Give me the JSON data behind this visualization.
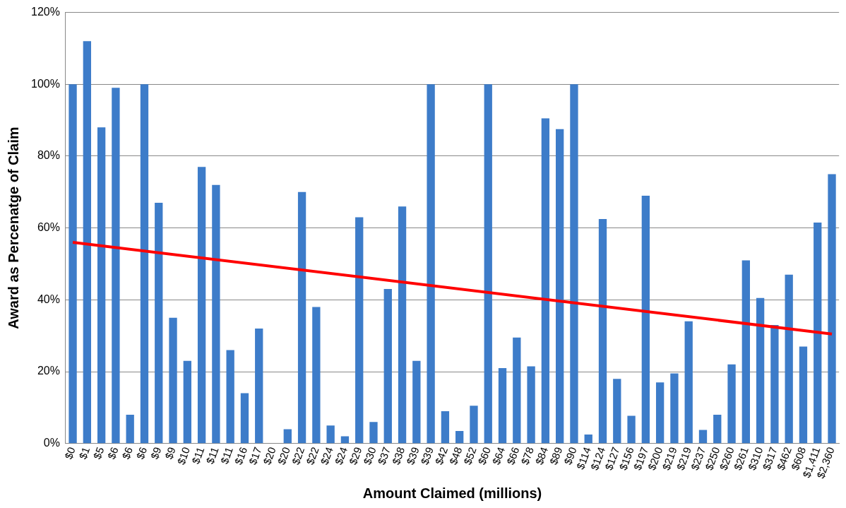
{
  "chart_data": {
    "type": "bar",
    "xlabel": "Amount Claimed (millions)",
    "ylabel": "Award as Percenatge of Claim",
    "categories": [
      "$0",
      "$1",
      "$5",
      "$6",
      "$6",
      "$6",
      "$9",
      "$9",
      "$10",
      "$11",
      "$11",
      "$11",
      "$16",
      "$17",
      "$20",
      "$20",
      "$22",
      "$22",
      "$24",
      "$24",
      "$29",
      "$30",
      "$37",
      "$38",
      "$39",
      "$39",
      "$42",
      "$48",
      "$52",
      "$60",
      "$64",
      "$66",
      "$78",
      "$84",
      "$89",
      "$90",
      "$114",
      "$124",
      "$127",
      "$156",
      "$197",
      "$200",
      "$219",
      "$219",
      "$237",
      "$250",
      "$260",
      "$261",
      "$310",
      "$317",
      "$462",
      "$608",
      "$1,411",
      "$2,360"
    ],
    "series": [
      {
        "color": "#3d7cc9",
        "values": [
          100,
          112,
          88,
          99,
          8,
          100,
          67,
          35,
          23,
          77,
          72,
          26,
          14,
          32,
          0,
          4,
          70,
          38,
          5,
          2,
          63,
          6,
          43,
          66,
          23,
          100,
          9,
          3.5,
          10.5,
          100,
          21,
          29.5,
          21.5,
          90.5,
          87.5,
          100,
          2.5,
          62.5,
          18,
          7.7,
          69,
          17,
          19.5,
          34,
          3.8,
          8,
          22,
          51,
          40.5,
          33,
          47,
          27,
          61.5,
          75
        ]
      },
      {
        "type": "line",
        "color": "#ff0000",
        "x": [
          "$0",
          "$2,360"
        ],
        "values": [
          56,
          30.5
        ]
      }
    ],
    "ylim": [
      0,
      120
    ],
    "yticks": [
      {
        "value": 0,
        "label": "0%"
      },
      {
        "value": 20,
        "label": "20%"
      },
      {
        "value": 40,
        "label": "40%"
      },
      {
        "value": 60,
        "label": "60%"
      },
      {
        "value": 80,
        "label": "80%"
      },
      {
        "value": 100,
        "label": "100%"
      },
      {
        "value": 120,
        "label": "120%"
      }
    ],
    "grid": "y",
    "legend": false
  }
}
